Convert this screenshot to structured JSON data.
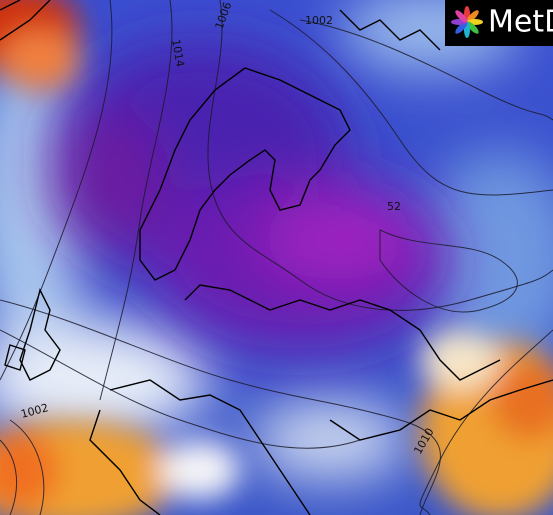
{
  "logo": {
    "text": "MetD"
  },
  "isobar_labels": [
    "1002",
    "1006",
    "1014",
    "1002",
    "1010",
    "52"
  ]
}
